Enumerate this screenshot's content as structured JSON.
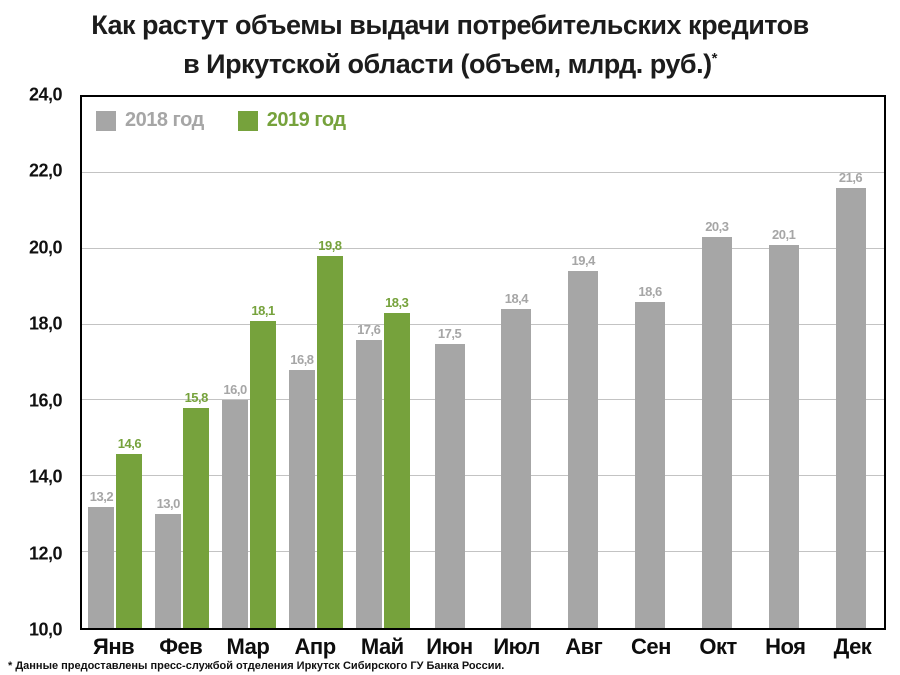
{
  "title": {
    "line1": "Как растут объемы выдачи потребительских кредитов",
    "line2": "в Иркутской области (объем, млрд. руб.)",
    "asterisk": "*"
  },
  "footnote": "* Данные предоставлены пресс-службой отделения Иркутск Сибирского ГУ Банка России.",
  "chart_data": {
    "type": "bar",
    "title": "Как растут объемы выдачи потребительских кредитов в Иркутской области (объем, млрд. руб.)*",
    "categories": [
      "Янв",
      "Фев",
      "Мар",
      "Апр",
      "Май",
      "Июн",
      "Июл",
      "Авг",
      "Сен",
      "Окт",
      "Ноя",
      "Дек"
    ],
    "series": [
      {
        "name": "2018 год",
        "color": "#a6a6a6",
        "values": [
          13.2,
          13.0,
          16.0,
          16.8,
          17.6,
          17.5,
          18.4,
          19.4,
          18.6,
          20.3,
          20.1,
          21.6
        ]
      },
      {
        "name": "2019 год",
        "color": "#76a23c",
        "values": [
          14.6,
          15.8,
          18.1,
          19.8,
          18.3,
          null,
          null,
          null,
          null,
          null,
          null,
          null
        ]
      }
    ],
    "ylim": [
      10,
      24
    ],
    "yticks": [
      10,
      12,
      14,
      16,
      18,
      20,
      22,
      24
    ],
    "decimal_separator": ",",
    "grid": true,
    "legend_position": "top-left-inside",
    "xlabel": "",
    "ylabel": ""
  }
}
